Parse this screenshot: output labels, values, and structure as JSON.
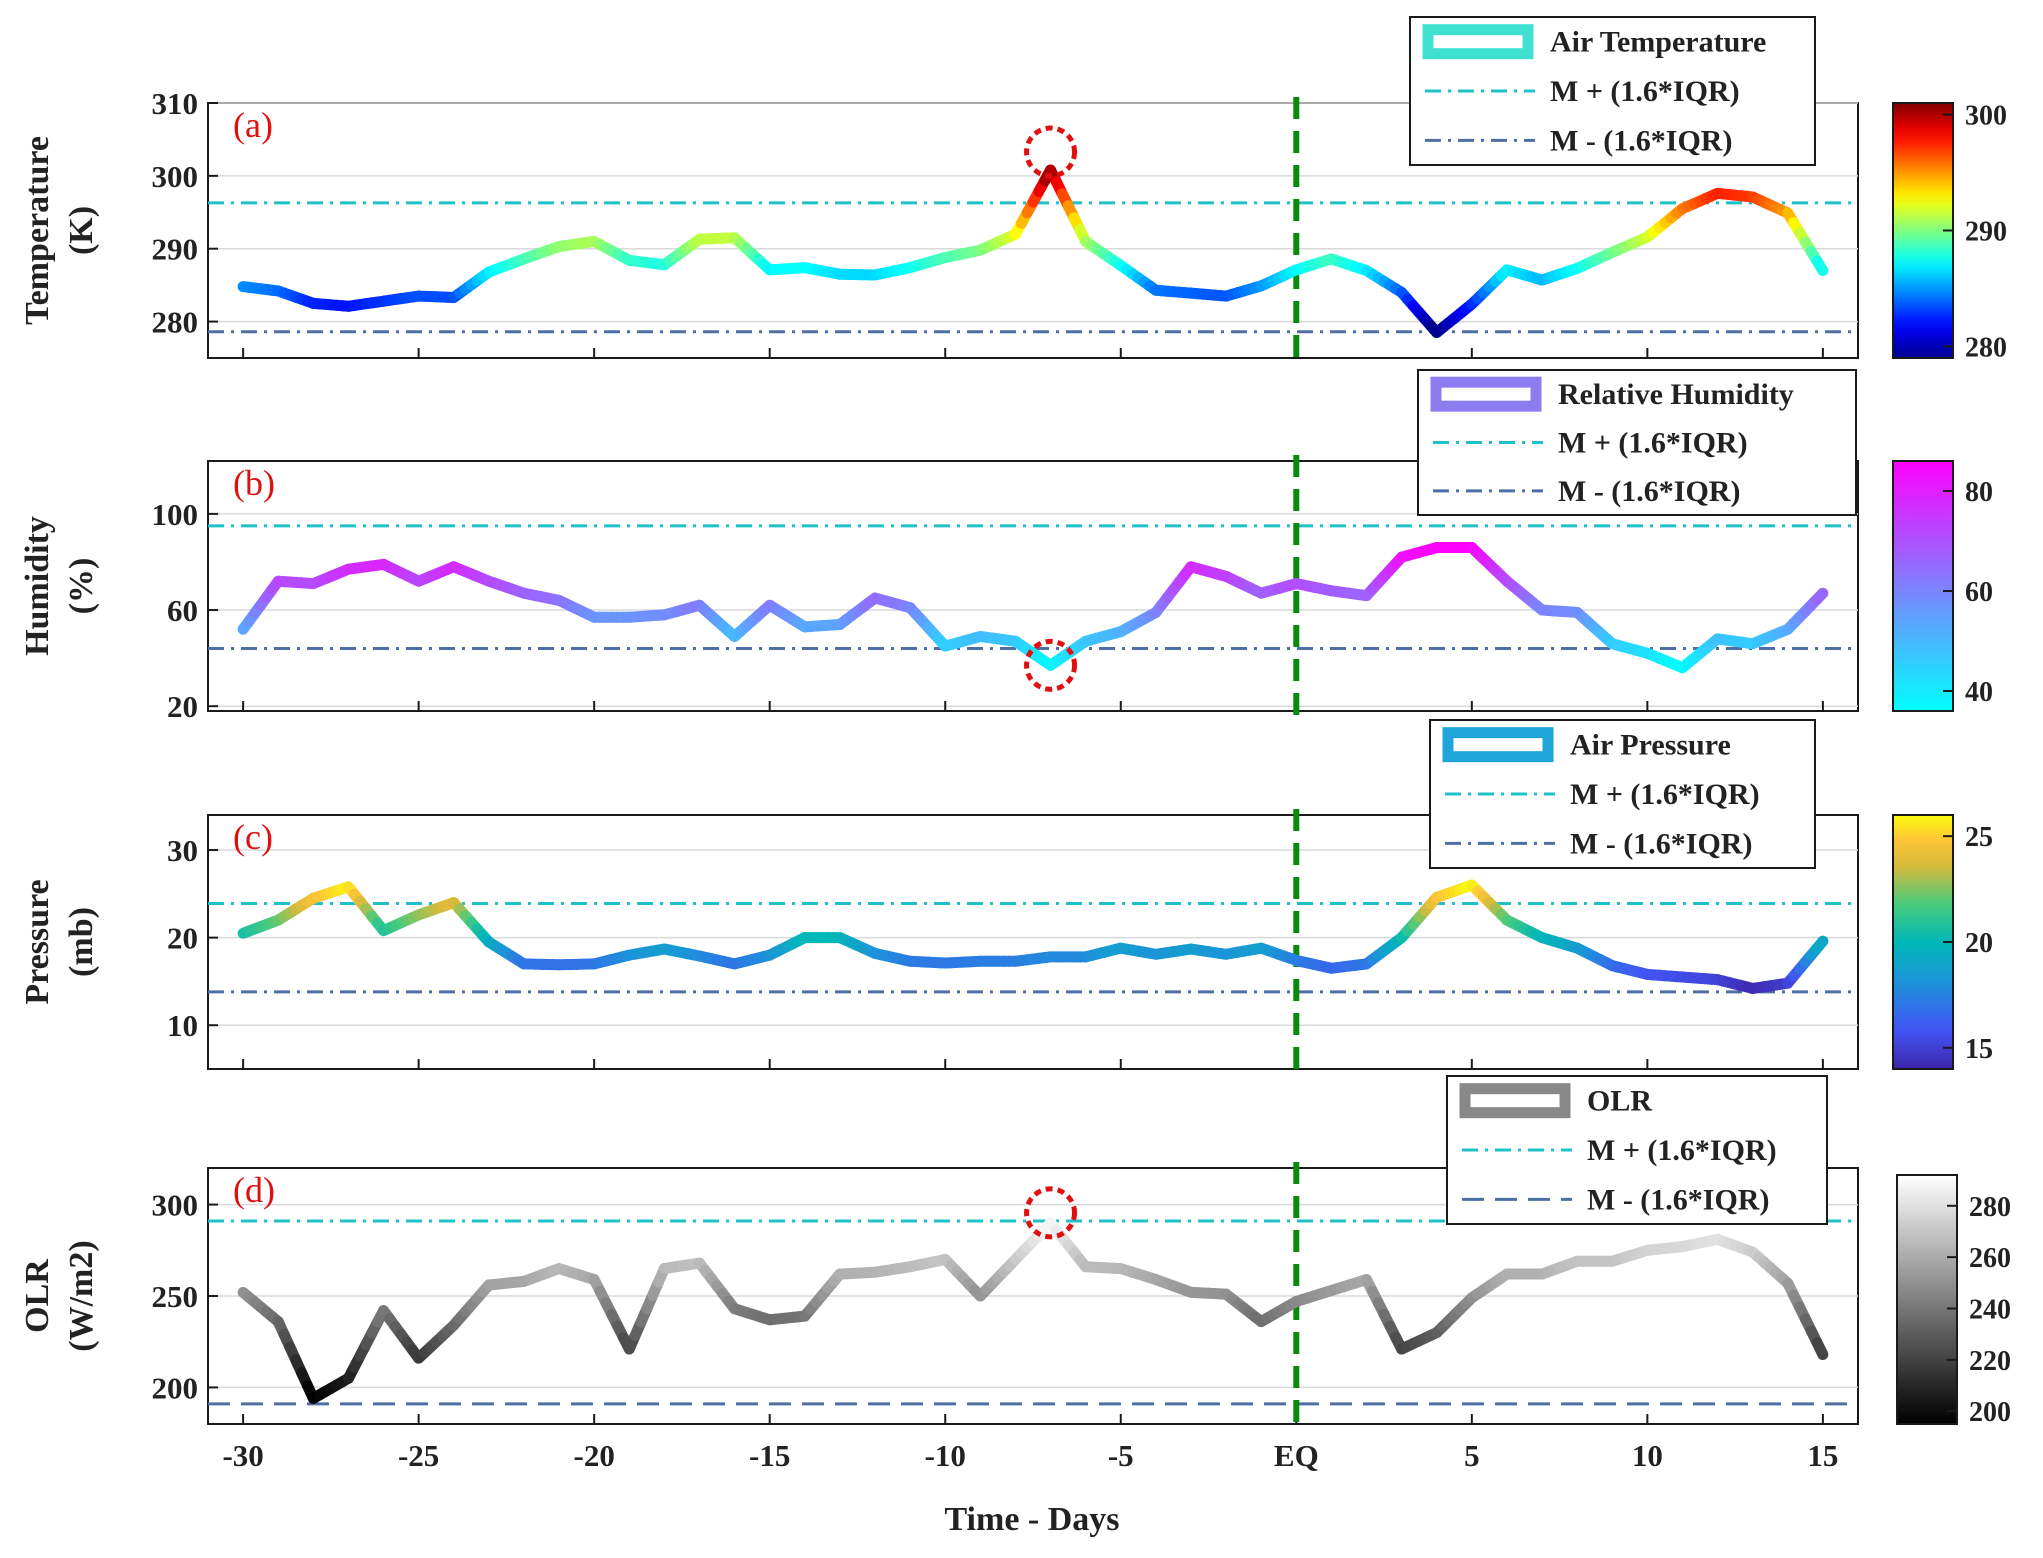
{
  "chart_data": {
    "type": "line",
    "xlabel": "Time - Days",
    "xlim": [
      -31,
      16
    ],
    "xticks": [
      {
        "value": -30,
        "label": "-30"
      },
      {
        "value": -25,
        "label": "-25"
      },
      {
        "value": -20,
        "label": "-20"
      },
      {
        "value": -15,
        "label": "-15"
      },
      {
        "value": -10,
        "label": "-10"
      },
      {
        "value": -5,
        "label": "-5"
      },
      {
        "value": 0,
        "label": "EQ"
      },
      {
        "value": 5,
        "label": "5"
      },
      {
        "value": 10,
        "label": "10"
      },
      {
        "value": 15,
        "label": "15"
      }
    ],
    "eq_day": 0,
    "x": [
      -30,
      -29,
      -28,
      -27,
      -26,
      -25,
      -24,
      -23,
      -22,
      -21,
      -20,
      -19,
      -18,
      -17,
      -16,
      -15,
      -14,
      -13,
      -12,
      -11,
      -10,
      -9,
      -8,
      -7,
      -6,
      -5,
      -4,
      -3,
      -2,
      -1,
      0,
      1,
      2,
      3,
      4,
      5,
      6,
      7,
      8,
      9,
      10,
      11,
      12,
      13,
      14,
      15
    ],
    "panels": [
      {
        "id": "a",
        "letter": "(a)",
        "ylabel": [
          "Temperature",
          "(K)"
        ],
        "ylim": [
          275,
          310
        ],
        "yticks": [
          280,
          290,
          300,
          310
        ],
        "series_name": "Air Temperature",
        "values": [
          284.8,
          284.2,
          282.5,
          282.1,
          282.8,
          283.5,
          283.3,
          286.8,
          288.6,
          290.3,
          291.0,
          288.4,
          287.8,
          291.3,
          291.5,
          287.1,
          287.4,
          286.5,
          286.4,
          287.4,
          288.8,
          289.8,
          292.0,
          300.8,
          291.0,
          287.7,
          284.3,
          283.9,
          283.5,
          284.9,
          287.1,
          288.6,
          287.0,
          284.0,
          278.5,
          282.4,
          287.1,
          285.7,
          287.3,
          289.5,
          291.6,
          295.5,
          297.6,
          297.1,
          294.9,
          287.0
        ],
        "upper_threshold": 296.3,
        "lower_threshold": 278.6,
        "upper_label": "M + (1.6*IQR)",
        "lower_label": "M - (1.6*IQR)",
        "lower_style": "dash-dot",
        "anomaly_day": -7,
        "colormap": "jet",
        "clim": [
          279,
          301
        ],
        "cb_ticks": [
          280,
          290,
          300
        ],
        "legend_swatch": "#40e0d0"
      },
      {
        "id": "b",
        "letter": "(b)",
        "ylabel": [
          "Humidity",
          "(%)"
        ],
        "ylim": [
          18,
          122
        ],
        "yticks": [
          20,
          60,
          100
        ],
        "series_name": "Relative Humidity",
        "values": [
          52,
          72,
          71,
          77,
          79,
          72,
          78,
          72,
          67,
          64,
          57,
          57,
          58,
          62,
          49,
          62,
          53,
          54,
          65,
          61,
          45,
          49,
          47,
          37,
          47,
          51,
          59,
          78,
          74,
          67,
          71,
          68,
          66,
          82,
          86,
          86,
          72,
          60,
          59,
          46,
          42,
          36,
          48,
          46,
          52,
          67
        ],
        "upper_threshold": 95,
        "lower_threshold": 44,
        "upper_label": "M + (1.6*IQR)",
        "lower_label": "M - (1.6*IQR)",
        "lower_style": "dash-dot",
        "anomaly_day": -7,
        "colormap": "cool",
        "clim": [
          36,
          86
        ],
        "cb_ticks": [
          40,
          60,
          80
        ],
        "legend_swatch": "#8c7cf0"
      },
      {
        "id": "c",
        "letter": "(c)",
        "ylabel": [
          "Pressure",
          "(mb)"
        ],
        "ylim": [
          5,
          34
        ],
        "yticks": [
          10,
          20,
          30
        ],
        "series_name": "Air Pressure",
        "values": [
          20.5,
          22.0,
          24.5,
          25.8,
          20.8,
          22.6,
          24.0,
          19.5,
          17.0,
          16.9,
          17.0,
          18.0,
          18.7,
          17.9,
          17.0,
          18.0,
          20.0,
          20.0,
          18.2,
          17.3,
          17.1,
          17.3,
          17.3,
          17.8,
          17.8,
          18.8,
          18.1,
          18.7,
          18.1,
          18.8,
          17.4,
          16.5,
          17.0,
          20.0,
          24.6,
          26.0,
          22.0,
          20.0,
          18.8,
          16.8,
          15.8,
          15.5,
          15.2,
          14.2,
          14.8,
          19.6
        ],
        "upper_threshold": 23.9,
        "lower_threshold": 13.8,
        "upper_label": "M + (1.6*IQR)",
        "lower_label": "M - (1.6*IQR)",
        "lower_style": "dash-dot",
        "anomaly_day": null,
        "colormap": "parula",
        "clim": [
          14,
          26
        ],
        "cb_ticks": [
          15,
          20,
          25
        ],
        "legend_swatch": "#1fa5d8"
      },
      {
        "id": "d",
        "letter": "(d)",
        "ylabel": [
          "OLR",
          "(W/m2)"
        ],
        "ylim": [
          180,
          320
        ],
        "yticks": [
          200,
          250,
          300
        ],
        "series_name": "OLR",
        "values": [
          252,
          236,
          194,
          205,
          242,
          216,
          234,
          256,
          258,
          265,
          259,
          221,
          265,
          268,
          243,
          237,
          239,
          262,
          263,
          266,
          270,
          250,
          270,
          290,
          266,
          265,
          259,
          252,
          251,
          236,
          247,
          253,
          259,
          221,
          230,
          249,
          262,
          262,
          269,
          269,
          275,
          277,
          281,
          274,
          257,
          218
        ],
        "upper_threshold": 291,
        "lower_threshold": 191,
        "upper_label": "M + (1.6*IQR)",
        "lower_label": "M - (1.6*IQR)",
        "lower_style": "dashed",
        "anomaly_day": -7,
        "colormap": "gray",
        "clim": [
          195,
          292
        ],
        "cb_ticks": [
          200,
          220,
          240,
          260,
          280
        ],
        "legend_swatch": "#888888"
      }
    ],
    "colors": {
      "upper_threshold": "#1fc1c9",
      "lower_threshold": "#4d6fa6",
      "eq_line": "#0a8a0a",
      "anomaly_circle": "#e01010",
      "panel_letter": "#e01010"
    }
  }
}
